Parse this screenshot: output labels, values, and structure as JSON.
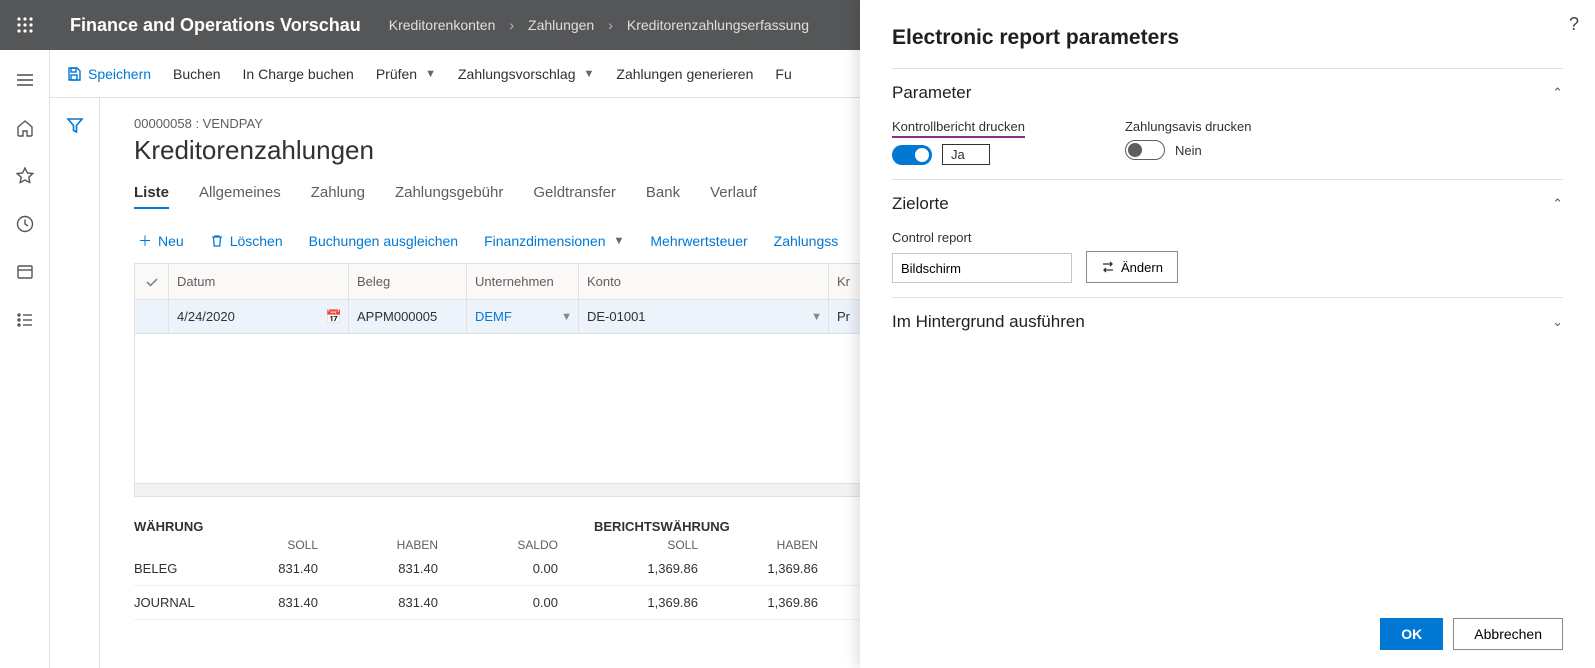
{
  "header": {
    "appTitle": "Finance and Operations Vorschau",
    "breadcrumb": [
      "Kreditorenkonten",
      "Zahlungen",
      "Kreditorenzahlungserfassung"
    ]
  },
  "actionbar": {
    "save": "Speichern",
    "post": "Buchen",
    "postCharge": "In Charge buchen",
    "check": "Prüfen",
    "proposal": "Zahlungsvorschlag",
    "generate": "Zahlungen generieren",
    "more": "Fu"
  },
  "page": {
    "recordId": "00000058 : VENDPAY",
    "title": "Kreditorenzahlungen"
  },
  "tabs": [
    "Liste",
    "Allgemeines",
    "Zahlung",
    "Zahlungsgebühr",
    "Geldtransfer",
    "Bank",
    "Verlauf"
  ],
  "gridToolbar": {
    "new": "Neu",
    "delete": "Löschen",
    "settle": "Buchungen ausgleichen",
    "findim": "Finanzdimensionen",
    "vat": "Mehrwertsteuer",
    "paystatus": "Zahlungss"
  },
  "grid": {
    "cols": [
      "Datum",
      "Beleg",
      "Unternehmen",
      "Konto",
      "Kr"
    ],
    "row": {
      "date": "4/24/2020",
      "voucher": "APPM000005",
      "company": "DEMF",
      "account": "DE-01001",
      "extra": "Pr"
    }
  },
  "currency": {
    "leftTitle": "WÄHRUNG",
    "rightTitle": "BERICHTSWÄHRUNG",
    "cols": [
      "SOLL",
      "HABEN",
      "SALDO"
    ],
    "cols2": [
      "SOLL",
      "HABEN"
    ],
    "rows": [
      {
        "label": "BELEG",
        "l": [
          "831.40",
          "831.40",
          "0.00"
        ],
        "r": [
          "1,369.86",
          "1,369.86"
        ]
      },
      {
        "label": "JOURNAL",
        "l": [
          "831.40",
          "831.40",
          "0.00"
        ],
        "r": [
          "1,369.86",
          "1,369.86"
        ]
      }
    ]
  },
  "panel": {
    "title": "Electronic report parameters",
    "sections": {
      "param": {
        "title": "Parameter",
        "printControl": {
          "label": "Kontrollbericht drucken",
          "value": "Ja"
        },
        "printAdvice": {
          "label": "Zahlungsavis drucken",
          "value": "Nein"
        }
      },
      "dest": {
        "title": "Zielorte",
        "controlReportLabel": "Control report",
        "controlReportValue": "Bildschirm",
        "changeBtn": "Ändern"
      },
      "background": {
        "title": "Im Hintergrund ausführen"
      }
    },
    "footer": {
      "ok": "OK",
      "cancel": "Abbrechen"
    }
  }
}
